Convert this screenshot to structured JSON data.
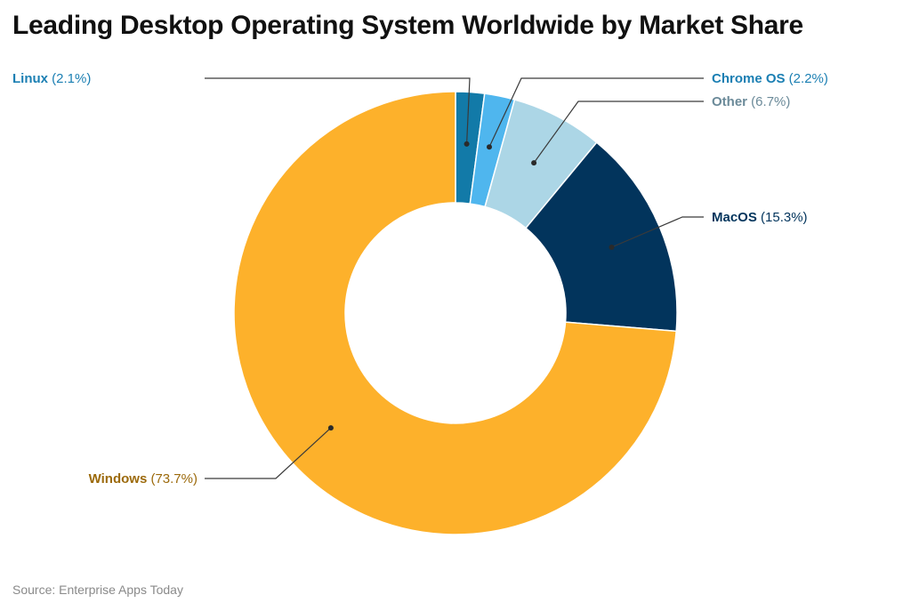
{
  "chart_data": {
    "type": "pie",
    "style": "donut",
    "title": "Leading Desktop Operating System Worldwide by Market Share",
    "unit": "%",
    "slices": [
      {
        "label": "Linux",
        "value": 2.1,
        "value_label": "(2.1%)",
        "color": "#127aa8",
        "label_color": "#1b7fb3"
      },
      {
        "label": "Chrome OS",
        "value": 2.2,
        "value_label": "(2.2%)",
        "color": "#4fb6ee",
        "label_color": "#1b7fb3"
      },
      {
        "label": "Other",
        "value": 6.7,
        "value_label": "(6.7%)",
        "color": "#acd6e6",
        "label_color": "#6b8a99"
      },
      {
        "label": "MacOS",
        "value": 15.3,
        "value_label": "(15.3%)",
        "color": "#02345c",
        "label_color": "#02345c"
      },
      {
        "label": "Windows",
        "value": 73.7,
        "value_label": "(73.7%)",
        "color": "#fdb12b",
        "label_color": "#9c6a0c"
      }
    ],
    "source": "Source: Enterprise Apps Today"
  }
}
